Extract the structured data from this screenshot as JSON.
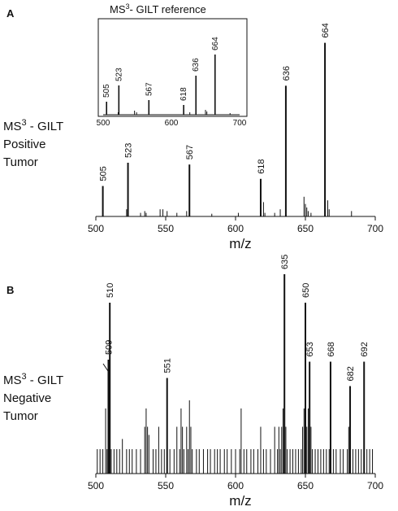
{
  "panels": {
    "a": {
      "letter": "A",
      "label_line1_prefix": "MS",
      "label_line1_sup": "3",
      "label_line1_suffix": " - GILT",
      "label_line2": "Positive",
      "label_line3": "Tumor"
    },
    "b": {
      "letter": "B",
      "label_line1_prefix": "MS",
      "label_line1_sup": "3",
      "label_line1_suffix": " - GILT",
      "label_line2": "Negative",
      "label_line3": "Tumor"
    },
    "inset": {
      "title_prefix": "MS",
      "title_sup": "3",
      "title_suffix": "- GILT reference"
    }
  },
  "chart_data": [
    {
      "id": "A",
      "type": "bar",
      "xlabel": "m/z",
      "ylabel": "",
      "xlim": [
        500,
        700
      ],
      "ylim": [
        0,
        100
      ],
      "x_ticks": [
        500,
        550,
        600,
        650,
        700
      ],
      "labeled_peaks": [
        {
          "x": 505,
          "y": 17,
          "label": "505"
        },
        {
          "x": 523,
          "y": 30,
          "label": "523"
        },
        {
          "x": 567,
          "y": 29,
          "label": "567"
        },
        {
          "x": 618,
          "y": 21,
          "label": "618"
        },
        {
          "x": 636,
          "y": 73,
          "label": "636"
        },
        {
          "x": 664,
          "y": 97,
          "label": "664"
        }
      ],
      "minor_peaks": [
        {
          "x": 522,
          "y": 4
        },
        {
          "x": 532,
          "y": 2
        },
        {
          "x": 535,
          "y": 3
        },
        {
          "x": 536,
          "y": 2
        },
        {
          "x": 546,
          "y": 4
        },
        {
          "x": 548,
          "y": 4
        },
        {
          "x": 551,
          "y": 3
        },
        {
          "x": 558,
          "y": 2
        },
        {
          "x": 565,
          "y": 3
        },
        {
          "x": 583,
          "y": 1.5
        },
        {
          "x": 602,
          "y": 2
        },
        {
          "x": 620,
          "y": 8
        },
        {
          "x": 621,
          "y": 2
        },
        {
          "x": 628,
          "y": 2
        },
        {
          "x": 632,
          "y": 4
        },
        {
          "x": 649,
          "y": 11
        },
        {
          "x": 650,
          "y": 7
        },
        {
          "x": 651,
          "y": 5
        },
        {
          "x": 652,
          "y": 3
        },
        {
          "x": 654,
          "y": 2
        },
        {
          "x": 666,
          "y": 9
        },
        {
          "x": 667,
          "y": 4
        },
        {
          "x": 683,
          "y": 3
        }
      ]
    },
    {
      "id": "A-inset",
      "type": "bar",
      "title": "MS3- GILT reference",
      "xlim": [
        500,
        700
      ],
      "ylim": [
        0,
        100
      ],
      "x_ticks": [
        500,
        600,
        700
      ],
      "labeled_peaks": [
        {
          "x": 505,
          "y": 16,
          "label": "505"
        },
        {
          "x": 523,
          "y": 36,
          "label": "523"
        },
        {
          "x": 567,
          "y": 18,
          "label": "567"
        },
        {
          "x": 618,
          "y": 12,
          "label": "618"
        },
        {
          "x": 636,
          "y": 48,
          "label": "636"
        },
        {
          "x": 664,
          "y": 74,
          "label": "664"
        }
      ],
      "minor_peaks": [
        {
          "x": 522,
          "y": 3
        },
        {
          "x": 546,
          "y": 5
        },
        {
          "x": 549,
          "y": 3
        },
        {
          "x": 627,
          "y": 3
        },
        {
          "x": 650,
          "y": 6
        },
        {
          "x": 652,
          "y": 4
        },
        {
          "x": 686,
          "y": 2
        }
      ]
    },
    {
      "id": "B",
      "type": "bar",
      "xlabel": "m/z",
      "ylabel": "",
      "xlim": [
        500,
        700
      ],
      "ylim": [
        0,
        100
      ],
      "x_ticks": [
        500,
        550,
        600,
        650,
        700
      ],
      "labeled_peaks": [
        {
          "x": 509,
          "y": 56,
          "label": "509"
        },
        {
          "x": 510,
          "y": 84,
          "label": "510"
        },
        {
          "x": 551,
          "y": 47,
          "label": "551"
        },
        {
          "x": 635,
          "y": 98,
          "label": "635"
        },
        {
          "x": 650,
          "y": 84,
          "label": "650"
        },
        {
          "x": 653,
          "y": 55,
          "label": "653"
        },
        {
          "x": 668,
          "y": 55,
          "label": "668"
        },
        {
          "x": 682,
          "y": 43,
          "label": "682"
        },
        {
          "x": 692,
          "y": 55,
          "label": "692"
        }
      ],
      "minor_peaks": [
        {
          "x": 501,
          "y": 12
        },
        {
          "x": 503,
          "y": 12
        },
        {
          "x": 505,
          "y": 12
        },
        {
          "x": 507,
          "y": 32
        },
        {
          "x": 508,
          "y": 12
        },
        {
          "x": 511,
          "y": 12
        },
        {
          "x": 513,
          "y": 12
        },
        {
          "x": 515,
          "y": 12
        },
        {
          "x": 517,
          "y": 12
        },
        {
          "x": 519,
          "y": 17
        },
        {
          "x": 522,
          "y": 12
        },
        {
          "x": 524,
          "y": 12
        },
        {
          "x": 526,
          "y": 12
        },
        {
          "x": 529,
          "y": 12
        },
        {
          "x": 532,
          "y": 12
        },
        {
          "x": 535,
          "y": 23
        },
        {
          "x": 536,
          "y": 32
        },
        {
          "x": 537,
          "y": 23
        },
        {
          "x": 538,
          "y": 19
        },
        {
          "x": 541,
          "y": 12
        },
        {
          "x": 543,
          "y": 12
        },
        {
          "x": 545,
          "y": 23
        },
        {
          "x": 547,
          "y": 12
        },
        {
          "x": 549,
          "y": 12
        },
        {
          "x": 553,
          "y": 12
        },
        {
          "x": 556,
          "y": 12
        },
        {
          "x": 558,
          "y": 23
        },
        {
          "x": 560,
          "y": 12
        },
        {
          "x": 561,
          "y": 32
        },
        {
          "x": 562,
          "y": 23
        },
        {
          "x": 563,
          "y": 12
        },
        {
          "x": 565,
          "y": 23
        },
        {
          "x": 566,
          "y": 12
        },
        {
          "x": 567,
          "y": 36
        },
        {
          "x": 568,
          "y": 23
        },
        {
          "x": 569,
          "y": 12
        },
        {
          "x": 572,
          "y": 12
        },
        {
          "x": 574,
          "y": 12
        },
        {
          "x": 577,
          "y": 12
        },
        {
          "x": 580,
          "y": 12
        },
        {
          "x": 582,
          "y": 12
        },
        {
          "x": 585,
          "y": 12
        },
        {
          "x": 587,
          "y": 12
        },
        {
          "x": 589,
          "y": 12
        },
        {
          "x": 592,
          "y": 12
        },
        {
          "x": 594,
          "y": 12
        },
        {
          "x": 597,
          "y": 12
        },
        {
          "x": 600,
          "y": 12
        },
        {
          "x": 603,
          "y": 12
        },
        {
          "x": 604,
          "y": 32
        },
        {
          "x": 606,
          "y": 12
        },
        {
          "x": 608,
          "y": 12
        },
        {
          "x": 611,
          "y": 12
        },
        {
          "x": 613,
          "y": 12
        },
        {
          "x": 616,
          "y": 12
        },
        {
          "x": 618,
          "y": 23
        },
        {
          "x": 620,
          "y": 12
        },
        {
          "x": 622,
          "y": 12
        },
        {
          "x": 625,
          "y": 12
        },
        {
          "x": 628,
          "y": 23
        },
        {
          "x": 630,
          "y": 12
        },
        {
          "x": 631,
          "y": 23
        },
        {
          "x": 632,
          "y": 12
        },
        {
          "x": 633,
          "y": 23
        },
        {
          "x": 634,
          "y": 32
        },
        {
          "x": 636,
          "y": 23
        },
        {
          "x": 637,
          "y": 12
        },
        {
          "x": 639,
          "y": 12
        },
        {
          "x": 641,
          "y": 12
        },
        {
          "x": 643,
          "y": 12
        },
        {
          "x": 645,
          "y": 12
        },
        {
          "x": 647,
          "y": 12
        },
        {
          "x": 648,
          "y": 23
        },
        {
          "x": 649,
          "y": 32
        },
        {
          "x": 651,
          "y": 23
        },
        {
          "x": 652,
          "y": 32
        },
        {
          "x": 654,
          "y": 23
        },
        {
          "x": 655,
          "y": 12
        },
        {
          "x": 657,
          "y": 12
        },
        {
          "x": 659,
          "y": 12
        },
        {
          "x": 661,
          "y": 12
        },
        {
          "x": 663,
          "y": 12
        },
        {
          "x": 665,
          "y": 12
        },
        {
          "x": 667,
          "y": 12
        },
        {
          "x": 670,
          "y": 12
        },
        {
          "x": 672,
          "y": 12
        },
        {
          "x": 675,
          "y": 12
        },
        {
          "x": 677,
          "y": 12
        },
        {
          "x": 680,
          "y": 12
        },
        {
          "x": 681,
          "y": 23
        },
        {
          "x": 684,
          "y": 12
        },
        {
          "x": 686,
          "y": 12
        },
        {
          "x": 688,
          "y": 12
        },
        {
          "x": 690,
          "y": 12
        },
        {
          "x": 694,
          "y": 12
        },
        {
          "x": 696,
          "y": 12
        },
        {
          "x": 698,
          "y": 12
        }
      ]
    }
  ]
}
